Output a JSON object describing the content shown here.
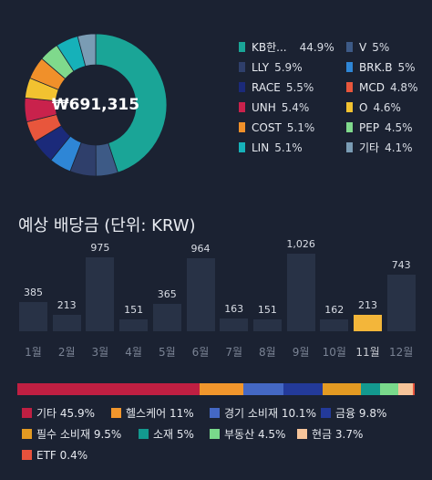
{
  "portfolio": {
    "total": "₩691,315",
    "holdings": [
      {
        "name": "KB한...",
        "pct": "44.9%",
        "color": "#1aa597",
        "value": 44.9
      },
      {
        "name": "V",
        "pct": "5%",
        "color": "#3d5a86",
        "value": 5.0
      },
      {
        "name": "LLY",
        "pct": "5.9%",
        "color": "#2f3f6b",
        "value": 5.9
      },
      {
        "name": "BRK.B",
        "pct": "5%",
        "color": "#2e86d6",
        "value": 5.0
      },
      {
        "name": "RACE",
        "pct": "5.5%",
        "color": "#1b2a7a",
        "value": 5.5
      },
      {
        "name": "MCD",
        "pct": "4.8%",
        "color": "#e8563c",
        "value": 4.8
      },
      {
        "name": "UNH",
        "pct": "5.4%",
        "color": "#c9224c",
        "value": 5.4
      },
      {
        "name": "O",
        "pct": "4.6%",
        "color": "#f2c230",
        "value": 4.6
      },
      {
        "name": "COST",
        "pct": "5.1%",
        "color": "#f0902a",
        "value": 5.1
      },
      {
        "name": "PEP",
        "pct": "4.5%",
        "color": "#7fd98c",
        "value": 4.5
      },
      {
        "name": "LIN",
        "pct": "5.1%",
        "color": "#16b1b9",
        "value": 5.1
      },
      {
        "name": "기타",
        "pct": "4.1%",
        "color": "#7a9cb4",
        "value": 4.1
      }
    ]
  },
  "dividends": {
    "title": "예상 배당금 (단위: KRW)",
    "highlight_index": 10,
    "months": [
      {
        "label": "1월",
        "value": 385
      },
      {
        "label": "2월",
        "value": 213
      },
      {
        "label": "3월",
        "value": 975
      },
      {
        "label": "4월",
        "value": 151
      },
      {
        "label": "5월",
        "value": 365
      },
      {
        "label": "6월",
        "value": 964
      },
      {
        "label": "7월",
        "value": 163
      },
      {
        "label": "8월",
        "value": 151
      },
      {
        "label": "9월",
        "value": 1026
      },
      {
        "label": "10월",
        "value": 162
      },
      {
        "label": "11월",
        "value": 213
      },
      {
        "label": "12월",
        "value": 743
      }
    ],
    "value_labels": [
      "385",
      "213",
      "975",
      "151",
      "365",
      "964",
      "163",
      "151",
      "1,026",
      "162",
      "213",
      "743"
    ]
  },
  "sectors": [
    {
      "name": "기타",
      "pct": "45.9%",
      "value": 45.9,
      "color": "#c01f42"
    },
    {
      "name": "헬스케어",
      "pct": "11%",
      "value": 11.0,
      "color": "#f1962c"
    },
    {
      "name": "경기 소비재",
      "pct": "10.1%",
      "value": 10.1,
      "color": "#4468c4"
    },
    {
      "name": "금융",
      "pct": "9.8%",
      "value": 9.8,
      "color": "#233a9a"
    },
    {
      "name": "필수 소비재",
      "pct": "9.5%",
      "value": 9.5,
      "color": "#e39a22"
    },
    {
      "name": "소재",
      "pct": "5%",
      "value": 5.0,
      "color": "#13998f"
    },
    {
      "name": "부동산",
      "pct": "4.5%",
      "value": 4.5,
      "color": "#79d98b"
    },
    {
      "name": "현금",
      "pct": "3.7%",
      "value": 3.7,
      "color": "#f6c49a"
    },
    {
      "name": "ETF",
      "pct": "0.4%",
      "value": 0.4,
      "color": "#e8523c"
    }
  ]
}
